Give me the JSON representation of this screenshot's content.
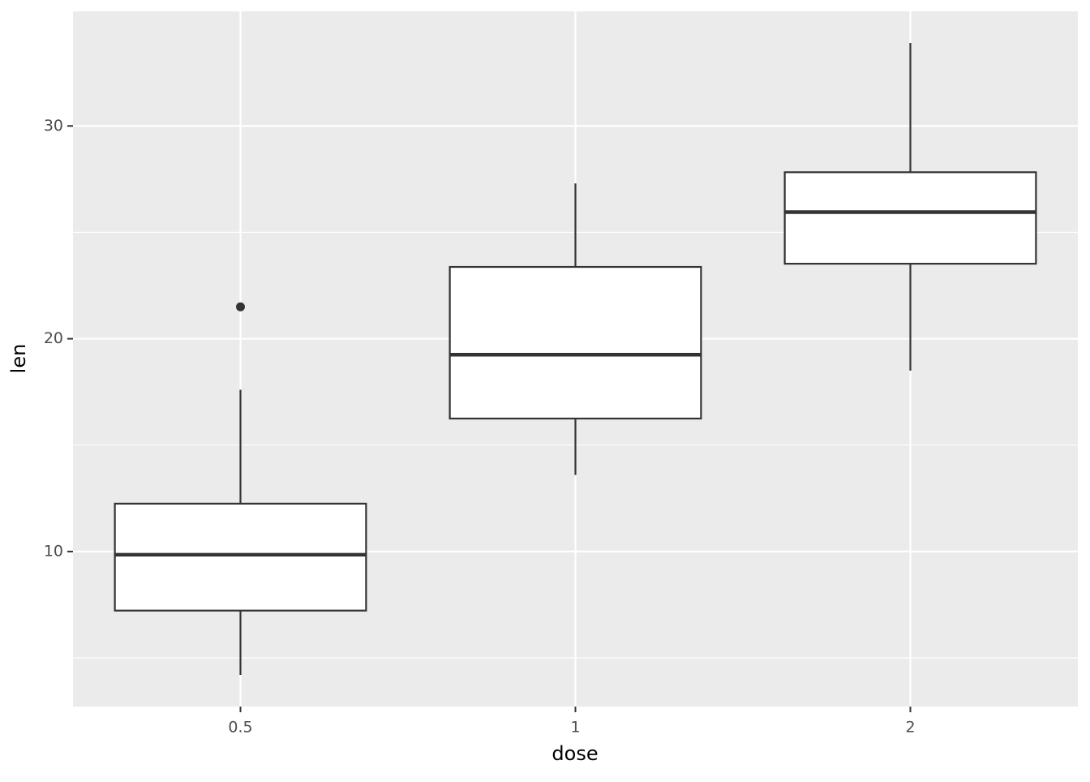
{
  "chart_data": {
    "type": "box",
    "x_label": "dose",
    "y_label": "len",
    "categories": [
      "0.5",
      "1",
      "2"
    ],
    "boxes": [
      {
        "min": 4.2,
        "q1": 7.225,
        "median": 9.85,
        "q3": 12.25,
        "max": 17.6,
        "outliers": [
          21.5
        ]
      },
      {
        "min": 13.6,
        "q1": 16.25,
        "median": 19.25,
        "q3": 23.375,
        "max": 27.3,
        "outliers": []
      },
      {
        "min": 18.5,
        "q1": 23.525,
        "median": 25.95,
        "q3": 27.825,
        "max": 33.9,
        "outliers": []
      }
    ],
    "ylim": [
      2.715,
      35.385
    ],
    "yticks": [
      10,
      20,
      30
    ],
    "yminorticks": [
      5,
      15,
      25
    ],
    "grid": true,
    "panel_color": "#ebebeb",
    "box_fill": "#ffffff",
    "line_color": "#333333"
  }
}
